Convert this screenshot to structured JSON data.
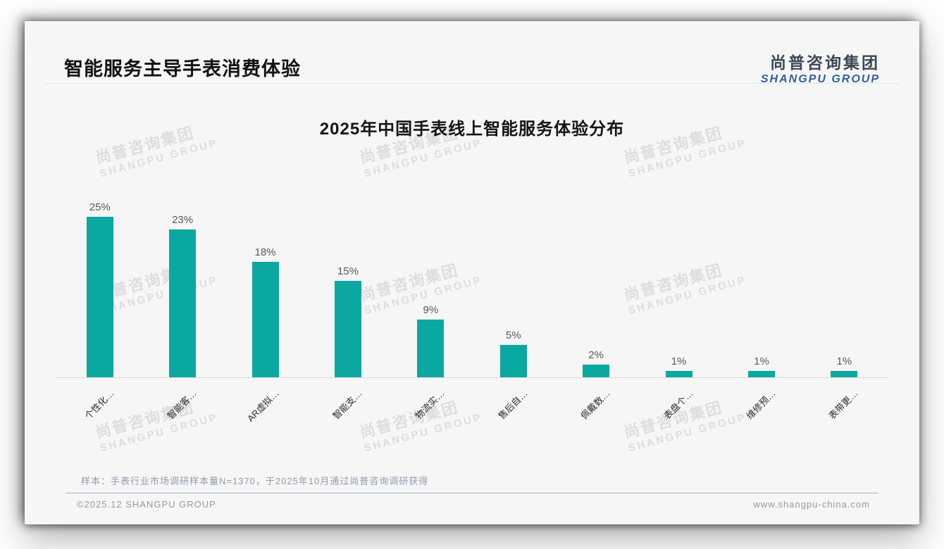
{
  "page": {
    "title": "智能服务主导手表消费体验",
    "logo": {
      "name_cn": "尚普咨询集团",
      "name_en": "SHANGPU GROUP"
    },
    "watermark": {
      "line1": "尚普咨询集团",
      "line2": "SHANGPU GROUP"
    },
    "note": "样本：手表行业市场调研样本量N=1370，于2025年10月通过尚普咨询调研获得",
    "footer": {
      "copyright": "©2025.12 SHANGPU GROUP",
      "website": "www.shangpu-china.com"
    }
  },
  "colors": {
    "bar": "#0AA8A0",
    "logo_blue": "#2E5FA3",
    "divider_blue": "#A7B4C4"
  },
  "chart_data": {
    "type": "bar",
    "title": "2025年中国手表线上智能服务体验分布",
    "categories": [
      "个性化…",
      "智能客…",
      "AR虚拟…",
      "智能支…",
      "物流实…",
      "售后自…",
      "佩戴数…",
      "表盘个…",
      "维修预…",
      "表带更…"
    ],
    "values": [
      25,
      23,
      18,
      15,
      9,
      5,
      2,
      1,
      1,
      1
    ],
    "value_labels": [
      "25%",
      "23%",
      "18%",
      "15%",
      "9%",
      "5%",
      "2%",
      "1%",
      "1%",
      "1%"
    ],
    "unit": "%",
    "ylim": [
      0,
      25
    ],
    "grid": false,
    "legend": null,
    "xlabel": "",
    "ylabel": ""
  }
}
